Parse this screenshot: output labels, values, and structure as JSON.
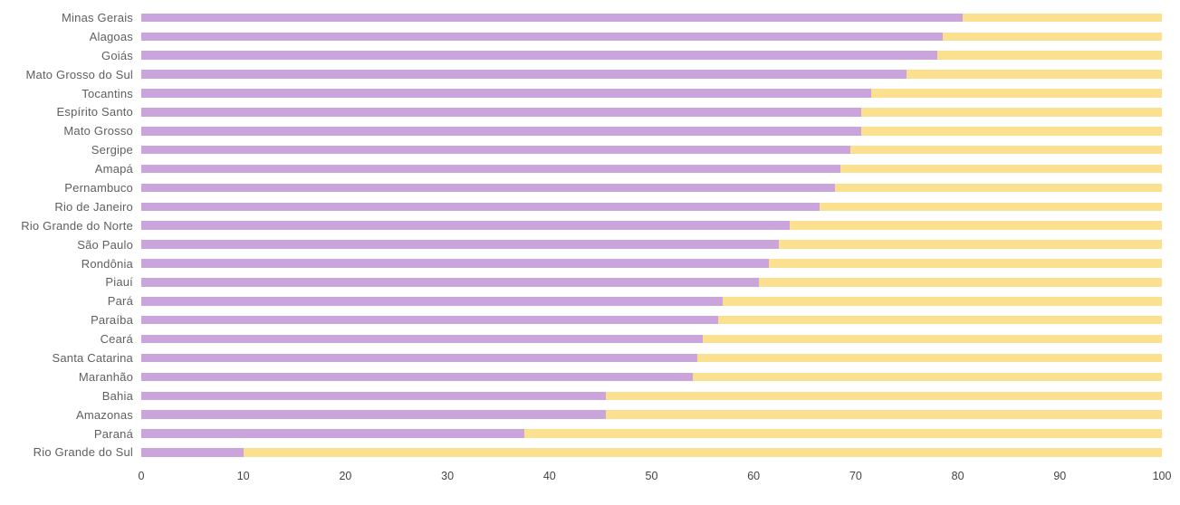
{
  "chart_data": {
    "type": "bar",
    "orientation": "horizontal",
    "stacked": true,
    "title": "",
    "xlabel": "",
    "ylabel": "",
    "xlim": [
      0,
      100
    ],
    "x_ticks": [
      0,
      10,
      20,
      30,
      40,
      50,
      60,
      70,
      80,
      90,
      100
    ],
    "grid": "off",
    "legend": "none",
    "categories": [
      "Minas Gerais",
      "Alagoas",
      "Goiás",
      "Mato Grosso do Sul",
      "Tocantins",
      "Espírito Santo",
      "Mato Grosso",
      "Sergipe",
      "Amapá",
      "Pernambuco",
      "Rio de Janeiro",
      "Rio Grande do Norte",
      "São Paulo",
      "Rondônia",
      "Piauí",
      "Pará",
      "Paraíba",
      "Ceará",
      "Santa Catarina",
      "Maranhão",
      "Bahia",
      "Amazonas",
      "Paraná",
      "Rio Grande do Sul"
    ],
    "series": [
      {
        "name": "purple-segment",
        "color": "#c9a5dc",
        "values": [
          80.5,
          78.5,
          78,
          75,
          71.5,
          70.5,
          70.5,
          69.5,
          68.5,
          68,
          66.5,
          63.5,
          62.5,
          61.5,
          60.5,
          57,
          56.5,
          55,
          54.5,
          54,
          45.5,
          45.5,
          37.5,
          10
        ]
      },
      {
        "name": "yellow-segment",
        "color": "#fbe18f",
        "values": [
          19.5,
          21.5,
          22,
          25,
          28.5,
          29.5,
          29.5,
          30.5,
          31.5,
          32,
          33.5,
          36.5,
          37.5,
          38.5,
          39.5,
          43,
          43.5,
          45,
          45.5,
          46,
          54.5,
          54.5,
          62.5,
          90
        ]
      }
    ]
  },
  "colors": {
    "purple": "#c9a5dc",
    "yellow": "#fbe18f",
    "label_text": "#606060",
    "tick_text": "#444444",
    "background": "#ffffff"
  }
}
